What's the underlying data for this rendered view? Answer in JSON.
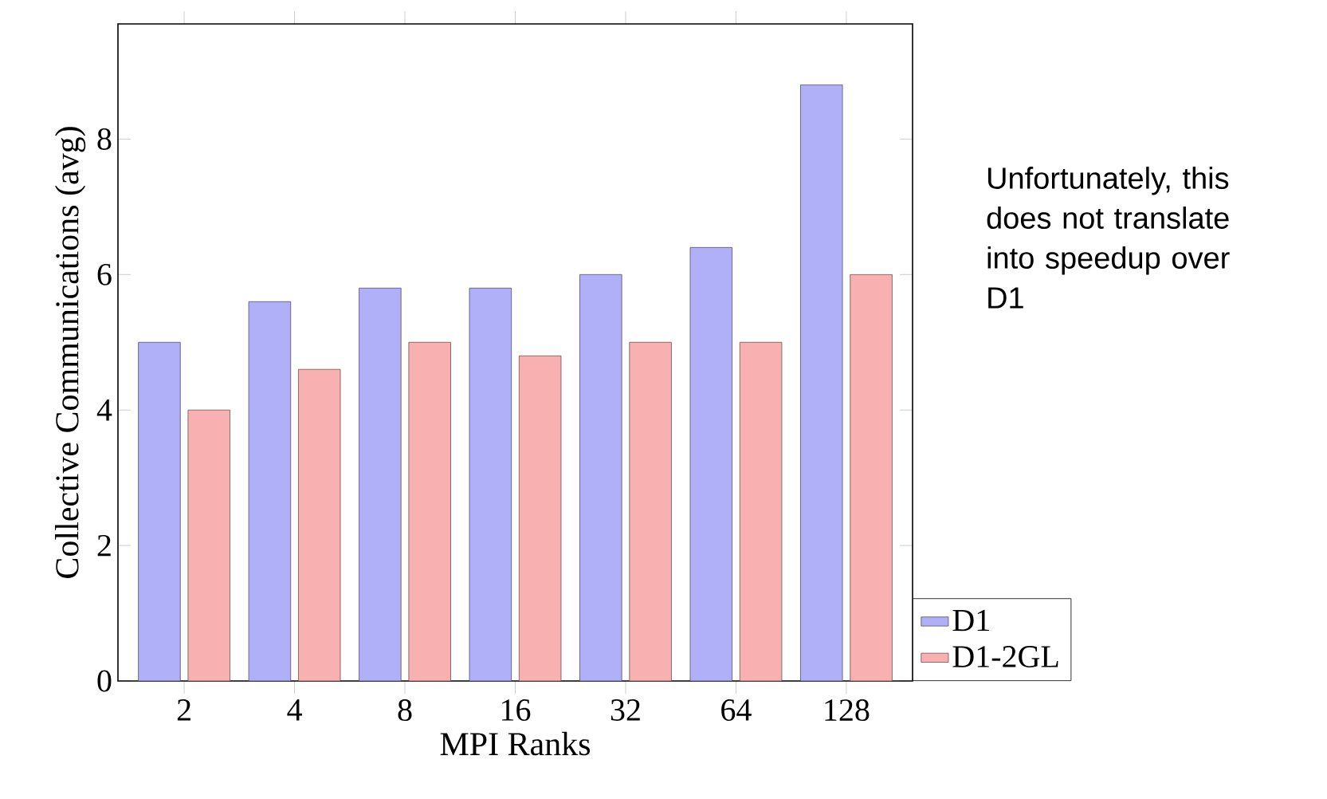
{
  "chart_data": {
    "type": "bar",
    "xlabel": "MPI Ranks",
    "ylabel": "Collective Communications (avg)",
    "categories": [
      "2",
      "4",
      "8",
      "16",
      "32",
      "64",
      "128"
    ],
    "series": [
      {
        "name": "D1",
        "color": "#b0b0f8",
        "values": [
          5,
          5.6,
          5.8,
          5.8,
          6,
          6.4,
          8.8
        ]
      },
      {
        "name": "D1-2GL",
        "color": "#f8b0b0",
        "values": [
          4,
          4.6,
          5,
          4.8,
          5,
          5,
          6
        ]
      }
    ],
    "ylim": [
      0,
      9.7
    ],
    "yticks": [
      0,
      2,
      4,
      6,
      8
    ],
    "legend": "bottom right",
    "annotations": [
      "Unfortunately, this does not translate into speedup over D1"
    ]
  }
}
